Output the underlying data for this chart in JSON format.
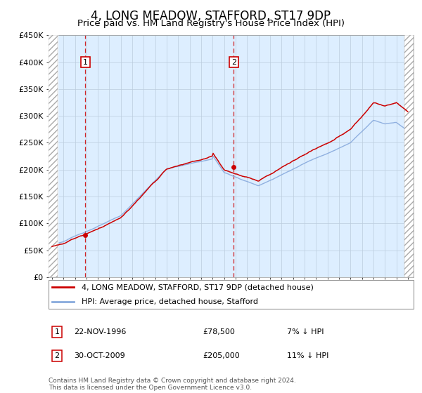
{
  "title": "4, LONG MEADOW, STAFFORD, ST17 9DP",
  "subtitle": "Price paid vs. HM Land Registry's House Price Index (HPI)",
  "title_fontsize": 12,
  "subtitle_fontsize": 9.5,
  "xlim_start": 1993.7,
  "xlim_end": 2025.5,
  "ylim_min": 0,
  "ylim_max": 450000,
  "yticks": [
    0,
    50000,
    100000,
    150000,
    200000,
    250000,
    300000,
    350000,
    400000,
    450000
  ],
  "ytick_labels": [
    "£0",
    "£50K",
    "£100K",
    "£150K",
    "£200K",
    "£250K",
    "£300K",
    "£350K",
    "£400K",
    "£450K"
  ],
  "xtick_years": [
    1994,
    1995,
    1996,
    1997,
    1998,
    1999,
    2000,
    2001,
    2002,
    2003,
    2004,
    2005,
    2006,
    2007,
    2008,
    2009,
    2010,
    2011,
    2012,
    2013,
    2014,
    2015,
    2016,
    2017,
    2018,
    2019,
    2020,
    2021,
    2022,
    2023,
    2024,
    2025
  ],
  "transaction1_x": 1996.9,
  "transaction1_y": 78500,
  "transaction2_x": 2009.83,
  "transaction2_y": 205000,
  "sale_color": "#cc0000",
  "hpi_color": "#88aadd",
  "legend_sale_label": "4, LONG MEADOW, STAFFORD, ST17 9DP (detached house)",
  "legend_hpi_label": "HPI: Average price, detached house, Stafford",
  "annotation1_label": "1",
  "annotation1_date": "22-NOV-1996",
  "annotation1_price": "£78,500",
  "annotation1_pct": "7% ↓ HPI",
  "annotation2_label": "2",
  "annotation2_date": "30-OCT-2009",
  "annotation2_price": "£205,000",
  "annotation2_pct": "11% ↓ HPI",
  "footnote": "Contains HM Land Registry data © Crown copyright and database right 2024.\nThis data is licensed under the Open Government Licence v3.0.",
  "bg_color": "#ddeeff",
  "grid_color": "#bbccdd",
  "hatch_color": "#aaaaaa"
}
